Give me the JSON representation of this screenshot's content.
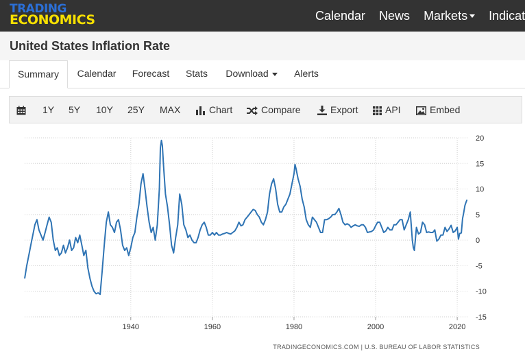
{
  "header": {
    "logo_line1": "TRADING",
    "logo_line2": "ECONOMICS",
    "nav": [
      {
        "label": "Calendar"
      },
      {
        "label": "News"
      },
      {
        "label": "Markets"
      },
      {
        "label": "Indicat"
      }
    ]
  },
  "page": {
    "title": "United States Inflation Rate"
  },
  "tabs": [
    {
      "label": "Summary"
    },
    {
      "label": "Calendar"
    },
    {
      "label": "Forecast"
    },
    {
      "label": "Stats"
    },
    {
      "label": "Download"
    },
    {
      "label": "Alerts"
    }
  ],
  "toolbar": {
    "ranges": [
      "1Y",
      "5Y",
      "10Y",
      "25Y",
      "MAX"
    ],
    "chart_label": "Chart",
    "compare_label": "Compare",
    "export_label": "Export",
    "api_label": "API",
    "embed_label": "Embed"
  },
  "chart_data": {
    "type": "line",
    "title": "",
    "xlabel": "",
    "ylabel": "",
    "xlim": [
      1914,
      2022.5
    ],
    "ylim": [
      -15,
      20
    ],
    "x_ticks": [
      1940,
      1960,
      1980,
      2000,
      2020
    ],
    "y_ticks": [
      20,
      15,
      10,
      5,
      0,
      -5,
      -10,
      -15
    ],
    "grid": true,
    "colors": {
      "line": "#2f74b4",
      "grid": "#d0d0d0",
      "text": "#333333"
    },
    "source": "TRADINGECONOMICS.COM | U.S. BUREAU OF LABOR STATISTICS",
    "series": [
      {
        "points": [
          [
            1914.0,
            -7.5
          ],
          [
            1914.5,
            -5.0
          ],
          [
            1915.0,
            -3.0
          ],
          [
            1915.5,
            -1.0
          ],
          [
            1916.0,
            1.0
          ],
          [
            1916.5,
            3.0
          ],
          [
            1917.0,
            4.0
          ],
          [
            1917.5,
            2.0
          ],
          [
            1918.0,
            1.0
          ],
          [
            1918.5,
            0.0
          ],
          [
            1919.0,
            1.5
          ],
          [
            1919.5,
            3.0
          ],
          [
            1920.0,
            4.5
          ],
          [
            1920.5,
            3.5
          ],
          [
            1921.0,
            0.0
          ],
          [
            1921.5,
            -2.0
          ],
          [
            1922.0,
            -1.5
          ],
          [
            1922.5,
            -3.0
          ],
          [
            1923.0,
            -2.5
          ],
          [
            1923.5,
            -1.0
          ],
          [
            1924.0,
            -2.5
          ],
          [
            1924.5,
            -1.5
          ],
          [
            1925.0,
            0.0
          ],
          [
            1925.5,
            -2.0
          ],
          [
            1926.0,
            -1.5
          ],
          [
            1926.5,
            0.5
          ],
          [
            1927.0,
            -0.5
          ],
          [
            1927.5,
            1.0
          ],
          [
            1928.0,
            -1.0
          ],
          [
            1928.5,
            -3.0
          ],
          [
            1929.0,
            -2.0
          ],
          [
            1929.5,
            -5.5
          ],
          [
            1930.0,
            -7.5
          ],
          [
            1930.5,
            -9.0
          ],
          [
            1931.0,
            -10.0
          ],
          [
            1931.5,
            -10.5
          ],
          [
            1932.0,
            -10.3
          ],
          [
            1932.5,
            -10.6
          ],
          [
            1933.0,
            -6.0
          ],
          [
            1933.5,
            -1.0
          ],
          [
            1934.0,
            3.5
          ],
          [
            1934.5,
            5.5
          ],
          [
            1935.0,
            3.0
          ],
          [
            1935.5,
            2.5
          ],
          [
            1936.0,
            1.5
          ],
          [
            1936.5,
            3.5
          ],
          [
            1937.0,
            4.0
          ],
          [
            1937.5,
            2.0
          ],
          [
            1938.0,
            -1.0
          ],
          [
            1938.5,
            -2.0
          ],
          [
            1939.0,
            -1.5
          ],
          [
            1939.5,
            -3.0
          ],
          [
            1940.0,
            -1.5
          ],
          [
            1940.5,
            0.5
          ],
          [
            1941.0,
            1.5
          ],
          [
            1941.5,
            4.5
          ],
          [
            1942.0,
            7.0
          ],
          [
            1942.5,
            11.0
          ],
          [
            1943.0,
            13.0
          ],
          [
            1943.5,
            10.0
          ],
          [
            1944.0,
            6.5
          ],
          [
            1944.5,
            3.5
          ],
          [
            1945.0,
            1.5
          ],
          [
            1945.5,
            2.5
          ],
          [
            1946.0,
            0.0
          ],
          [
            1946.5,
            3.0
          ],
          [
            1947.0,
            10.0
          ],
          [
            1947.25,
            18.0
          ],
          [
            1947.5,
            19.5
          ],
          [
            1947.75,
            18.5
          ],
          [
            1948.0,
            15.0
          ],
          [
            1948.5,
            9.0
          ],
          [
            1949.0,
            6.5
          ],
          [
            1949.5,
            3.0
          ],
          [
            1950.0,
            -1.0
          ],
          [
            1950.5,
            -2.5
          ],
          [
            1951.0,
            0.5
          ],
          [
            1951.5,
            3.0
          ],
          [
            1952.0,
            9.0
          ],
          [
            1952.5,
            7.0
          ],
          [
            1953.0,
            3.0
          ],
          [
            1953.5,
            2.0
          ],
          [
            1954.0,
            0.5
          ],
          [
            1954.5,
            1.0
          ],
          [
            1955.0,
            0.0
          ],
          [
            1955.5,
            -0.5
          ],
          [
            1956.0,
            -0.5
          ],
          [
            1956.5,
            0.5
          ],
          [
            1957.0,
            2.0
          ],
          [
            1957.5,
            3.0
          ],
          [
            1958.0,
            3.5
          ],
          [
            1958.5,
            2.5
          ],
          [
            1959.0,
            1.0
          ],
          [
            1959.5,
            1.0
          ],
          [
            1960.0,
            1.5
          ],
          [
            1960.5,
            1.0
          ],
          [
            1961.0,
            1.5
          ],
          [
            1961.5,
            1.0
          ],
          [
            1962.0,
            1.0
          ],
          [
            1962.5,
            1.2
          ],
          [
            1963.0,
            1.3
          ],
          [
            1963.5,
            1.5
          ],
          [
            1964.0,
            1.3
          ],
          [
            1964.5,
            1.2
          ],
          [
            1965.0,
            1.5
          ],
          [
            1965.5,
            1.8
          ],
          [
            1966.0,
            2.5
          ],
          [
            1966.5,
            3.5
          ],
          [
            1967.0,
            2.8
          ],
          [
            1967.5,
            3.0
          ],
          [
            1968.0,
            4.0
          ],
          [
            1968.5,
            4.5
          ],
          [
            1969.0,
            5.0
          ],
          [
            1969.5,
            5.5
          ],
          [
            1970.0,
            6.0
          ],
          [
            1970.5,
            5.8
          ],
          [
            1971.0,
            5.0
          ],
          [
            1971.5,
            4.5
          ],
          [
            1972.0,
            3.5
          ],
          [
            1972.5,
            3.0
          ],
          [
            1973.0,
            4.0
          ],
          [
            1973.5,
            5.5
          ],
          [
            1974.0,
            9.0
          ],
          [
            1974.5,
            11.0
          ],
          [
            1975.0,
            12.0
          ],
          [
            1975.5,
            10.0
          ],
          [
            1976.0,
            7.0
          ],
          [
            1976.5,
            5.5
          ],
          [
            1977.0,
            5.5
          ],
          [
            1977.5,
            6.5
          ],
          [
            1978.0,
            7.0
          ],
          [
            1978.5,
            8.0
          ],
          [
            1979.0,
            9.0
          ],
          [
            1979.5,
            11.0
          ],
          [
            1980.0,
            13.0
          ],
          [
            1980.25,
            14.8
          ],
          [
            1980.5,
            14.0
          ],
          [
            1981.0,
            12.0
          ],
          [
            1981.5,
            10.5
          ],
          [
            1982.0,
            8.0
          ],
          [
            1982.5,
            6.5
          ],
          [
            1983.0,
            4.0
          ],
          [
            1983.5,
            3.0
          ],
          [
            1984.0,
            2.5
          ],
          [
            1984.5,
            4.5
          ],
          [
            1985.0,
            4.0
          ],
          [
            1985.5,
            3.5
          ],
          [
            1986.0,
            2.5
          ],
          [
            1986.5,
            1.5
          ],
          [
            1987.0,
            1.5
          ],
          [
            1987.5,
            4.0
          ],
          [
            1988.0,
            4.0
          ],
          [
            1988.5,
            4.2
          ],
          [
            1989.0,
            4.5
          ],
          [
            1989.5,
            5.0
          ],
          [
            1990.0,
            5.0
          ],
          [
            1990.5,
            5.5
          ],
          [
            1991.0,
            6.2
          ],
          [
            1991.5,
            5.0
          ],
          [
            1992.0,
            3.5
          ],
          [
            1992.5,
            3.0
          ],
          [
            1993.0,
            3.2
          ],
          [
            1993.5,
            3.0
          ],
          [
            1994.0,
            2.5
          ],
          [
            1994.5,
            2.8
          ],
          [
            1995.0,
            3.0
          ],
          [
            1995.5,
            2.8
          ],
          [
            1996.0,
            2.7
          ],
          [
            1996.5,
            3.0
          ],
          [
            1997.0,
            3.0
          ],
          [
            1997.5,
            2.5
          ],
          [
            1998.0,
            1.5
          ],
          [
            1998.5,
            1.6
          ],
          [
            1999.0,
            1.7
          ],
          [
            1999.5,
            2.0
          ],
          [
            2000.0,
            2.8
          ],
          [
            2000.5,
            3.5
          ],
          [
            2001.0,
            3.5
          ],
          [
            2001.5,
            2.5
          ],
          [
            2002.0,
            1.5
          ],
          [
            2002.5,
            1.8
          ],
          [
            2003.0,
            2.5
          ],
          [
            2003.5,
            2.0
          ],
          [
            2004.0,
            2.0
          ],
          [
            2004.5,
            3.0
          ],
          [
            2005.0,
            3.0
          ],
          [
            2005.5,
            3.5
          ],
          [
            2006.0,
            4.0
          ],
          [
            2006.5,
            4.0
          ],
          [
            2007.0,
            2.0
          ],
          [
            2007.5,
            3.0
          ],
          [
            2008.0,
            4.0
          ],
          [
            2008.5,
            5.5
          ],
          [
            2009.0,
            0.0
          ],
          [
            2009.25,
            -1.5
          ],
          [
            2009.5,
            -2.0
          ],
          [
            2010.0,
            2.5
          ],
          [
            2010.5,
            1.2
          ],
          [
            2011.0,
            1.5
          ],
          [
            2011.5,
            3.5
          ],
          [
            2012.0,
            3.0
          ],
          [
            2012.5,
            1.5
          ],
          [
            2013.0,
            1.6
          ],
          [
            2013.5,
            1.5
          ],
          [
            2014.0,
            1.5
          ],
          [
            2014.5,
            2.0
          ],
          [
            2015.0,
            -0.2
          ],
          [
            2015.5,
            0.2
          ],
          [
            2016.0,
            1.0
          ],
          [
            2016.5,
            1.0
          ],
          [
            2017.0,
            2.5
          ],
          [
            2017.5,
            1.7
          ],
          [
            2018.0,
            2.2
          ],
          [
            2018.5,
            2.9
          ],
          [
            2019.0,
            1.5
          ],
          [
            2019.5,
            1.8
          ],
          [
            2020.0,
            2.5
          ],
          [
            2020.3,
            0.2
          ],
          [
            2020.6,
            1.3
          ],
          [
            2021.0,
            1.4
          ],
          [
            2021.3,
            4.2
          ],
          [
            2021.6,
            5.4
          ],
          [
            2021.9,
            6.8
          ],
          [
            2022.2,
            7.5
          ],
          [
            2022.4,
            7.9
          ]
        ]
      }
    ]
  }
}
